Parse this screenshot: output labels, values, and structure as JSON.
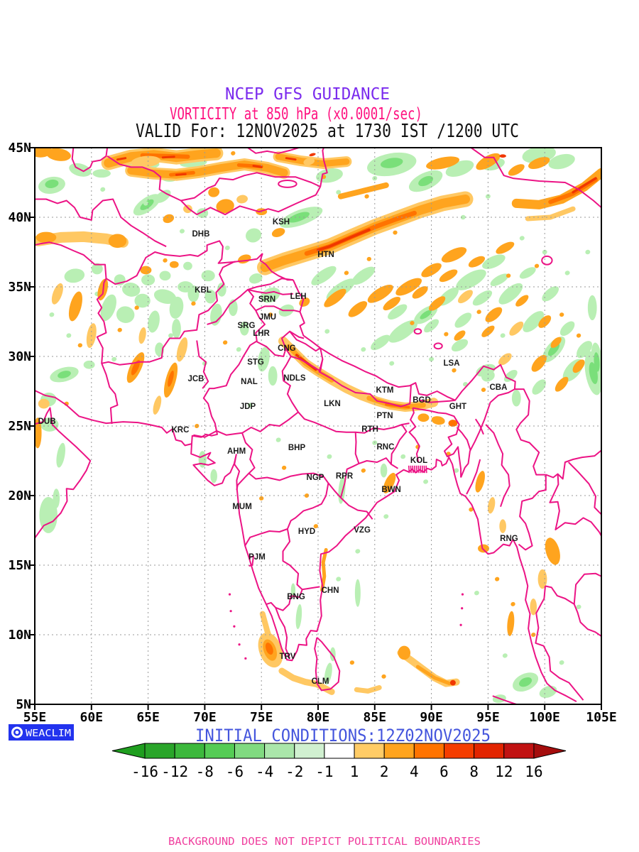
{
  "titles": {
    "line1": "NCEP GFS GUIDANCE",
    "line2": "VORTICITY at 850 hPa (x0.0001/sec)",
    "line3": "VALID For: 12NOV2025 at 1730 IST /1200 UTC"
  },
  "axes": {
    "lat_labels": [
      "45N",
      "40N",
      "35N",
      "30N",
      "25N",
      "20N",
      "15N",
      "10N",
      "5N"
    ],
    "lon_labels": [
      "55E",
      "60E",
      "65E",
      "70E",
      "75E",
      "80E",
      "85E",
      "90E",
      "95E",
      "100E",
      "105E"
    ]
  },
  "cities": [
    {
      "name": "DHB",
      "lon": 69.66,
      "lat": 38.83
    },
    {
      "name": "KSH",
      "lon": 76.74,
      "lat": 39.69
    },
    {
      "name": "HTN",
      "lon": 80.69,
      "lat": 37.35
    },
    {
      "name": "KBL",
      "lon": 69.85,
      "lat": 34.8
    },
    {
      "name": "SRN",
      "lon": 75.49,
      "lat": 34.13
    },
    {
      "name": "LEH",
      "lon": 78.25,
      "lat": 34.34
    },
    {
      "name": "JMU",
      "lon": 75.55,
      "lat": 32.86
    },
    {
      "name": "SRG",
      "lon": 73.67,
      "lat": 32.24
    },
    {
      "name": "LHR",
      "lon": 74.99,
      "lat": 31.68
    },
    {
      "name": "CNG",
      "lon": 77.24,
      "lat": 30.61
    },
    {
      "name": "STG",
      "lon": 74.49,
      "lat": 29.61
    },
    {
      "name": "NDLS",
      "lon": 77.93,
      "lat": 28.47
    },
    {
      "name": "JCB",
      "lon": 69.22,
      "lat": 28.42
    },
    {
      "name": "NAL",
      "lon": 73.92,
      "lat": 28.21
    },
    {
      "name": "LKN",
      "lon": 81.25,
      "lat": 26.63
    },
    {
      "name": "KTM",
      "lon": 85.89,
      "lat": 27.6
    },
    {
      "name": "BGD",
      "lon": 89.15,
      "lat": 26.89
    },
    {
      "name": "GHT",
      "lon": 92.34,
      "lat": 26.43
    },
    {
      "name": "CBA",
      "lon": 95.91,
      "lat": 27.81
    },
    {
      "name": "LSA",
      "lon": 91.78,
      "lat": 29.54
    },
    {
      "name": "JDP",
      "lon": 73.8,
      "lat": 26.43
    },
    {
      "name": "PTN",
      "lon": 85.89,
      "lat": 25.76
    },
    {
      "name": "RTH",
      "lon": 84.58,
      "lat": 24.8
    },
    {
      "name": "KRC",
      "lon": 67.84,
      "lat": 24.74
    },
    {
      "name": "DUB",
      "lon": 56.07,
      "lat": 25.36
    },
    {
      "name": "AHM",
      "lon": 72.8,
      "lat": 23.21
    },
    {
      "name": "BHP",
      "lon": 78.12,
      "lat": 23.47
    },
    {
      "name": "RNC",
      "lon": 85.95,
      "lat": 23.52
    },
    {
      "name": "KOL",
      "lon": 88.9,
      "lat": 22.55
    },
    {
      "name": "NGP",
      "lon": 79.75,
      "lat": 21.33
    },
    {
      "name": "RPR",
      "lon": 82.32,
      "lat": 21.43
    },
    {
      "name": "BWN",
      "lon": 86.46,
      "lat": 20.46
    },
    {
      "name": "MUM",
      "lon": 73.3,
      "lat": 19.23
    },
    {
      "name": "HYD",
      "lon": 79.0,
      "lat": 17.45
    },
    {
      "name": "VZG",
      "lon": 83.89,
      "lat": 17.55
    },
    {
      "name": "RNG",
      "lon": 96.85,
      "lat": 16.94
    },
    {
      "name": "PJM",
      "lon": 74.61,
      "lat": 15.61
    },
    {
      "name": "CHN",
      "lon": 81.07,
      "lat": 13.21
    },
    {
      "name": "BNG",
      "lon": 78.06,
      "lat": 12.76
    },
    {
      "name": "TRV",
      "lon": 77.31,
      "lat": 8.47
    },
    {
      "name": "CLM",
      "lon": 80.19,
      "lat": 6.68
    }
  ],
  "colorbar": {
    "labels": [
      "-16",
      "-12",
      "-8",
      "-6",
      "-4",
      "-2",
      "-1",
      "1",
      "2",
      "4",
      "6",
      "8",
      "12",
      "16"
    ],
    "segment_colors": [
      "#2aa52a",
      "#3cb83c",
      "#55cc55",
      "#80da80",
      "#aae6aa",
      "#d0f0d0",
      "#ffffff",
      "#ffcc66",
      "#ffa41e",
      "#ff7300",
      "#f53d00",
      "#e22400",
      "#c11212"
    ],
    "arrow_left_color": "#1f9e1f",
    "arrow_right_color": "#a50d0d"
  },
  "footer": {
    "logo_text": "WEACLIM",
    "initial_conditions": "INITIAL CONDITIONS:12Z02NOV2025",
    "disclaimer": "BACKGROUND DOES NOT DEPICT POLITICAL BOUNDARIES"
  },
  "colors": {
    "title1": "#7b2bee",
    "title2": "#ff1180",
    "title3": "#111111",
    "boundary_pink": "#ec1385",
    "initial_blue": "#4455dd",
    "disclaimer_pink": "#f0409f",
    "logo_blue": "#2233ee"
  }
}
